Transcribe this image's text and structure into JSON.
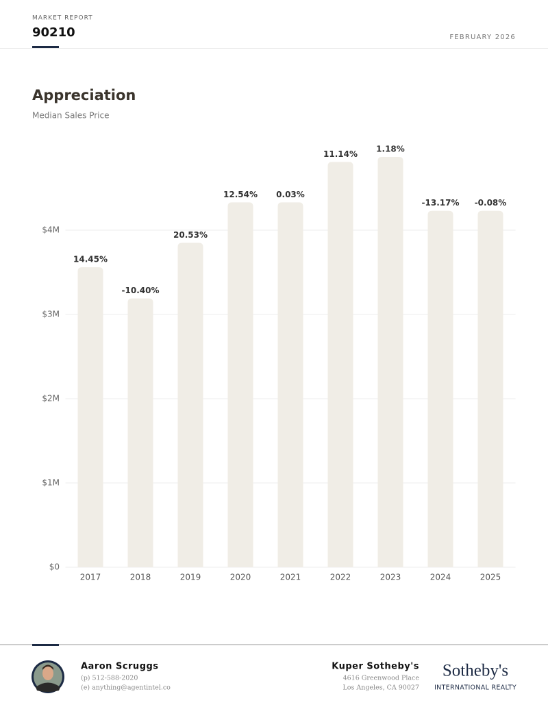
{
  "header": {
    "kicker": "MARKET REPORT",
    "zip": "90210",
    "date": "FEBRUARY 2026"
  },
  "chart_data": {
    "type": "bar",
    "title": "Appreciation",
    "subtitle": "Median Sales Price",
    "categories": [
      "2017",
      "2018",
      "2019",
      "2020",
      "2021",
      "2022",
      "2023",
      "2024",
      "2025"
    ],
    "values": [
      3560000,
      3190000,
      3850000,
      4330000,
      4330000,
      4810000,
      4870000,
      4230000,
      4230000
    ],
    "annotations": [
      "14.45%",
      "-10.40%",
      "20.53%",
      "12.54%",
      "0.03%",
      "11.14%",
      "1.18%",
      "-13.17%",
      "-0.08%"
    ],
    "color": "#f0ede6",
    "ylim": [
      0,
      5000000
    ],
    "yticks": [
      {
        "value": 0,
        "label": "$0"
      },
      {
        "value": 1000000,
        "label": "$1M"
      },
      {
        "value": 2000000,
        "label": "$2M"
      },
      {
        "value": 3000000,
        "label": "$3M"
      },
      {
        "value": 4000000,
        "label": "$4M"
      }
    ],
    "grid": true
  },
  "footer": {
    "agent": {
      "name": "Aaron Scruggs",
      "phone": "(p) 512-588-2020",
      "email": "(e) anything@agentintel.co"
    },
    "office": {
      "name": "Kuper Sotheby's",
      "address1": "4616 Greenwood Place",
      "address2": "Los Angeles, CA 90027"
    },
    "brand": {
      "name": "Sotheby's",
      "tagline": "INTERNATIONAL REALTY"
    }
  }
}
